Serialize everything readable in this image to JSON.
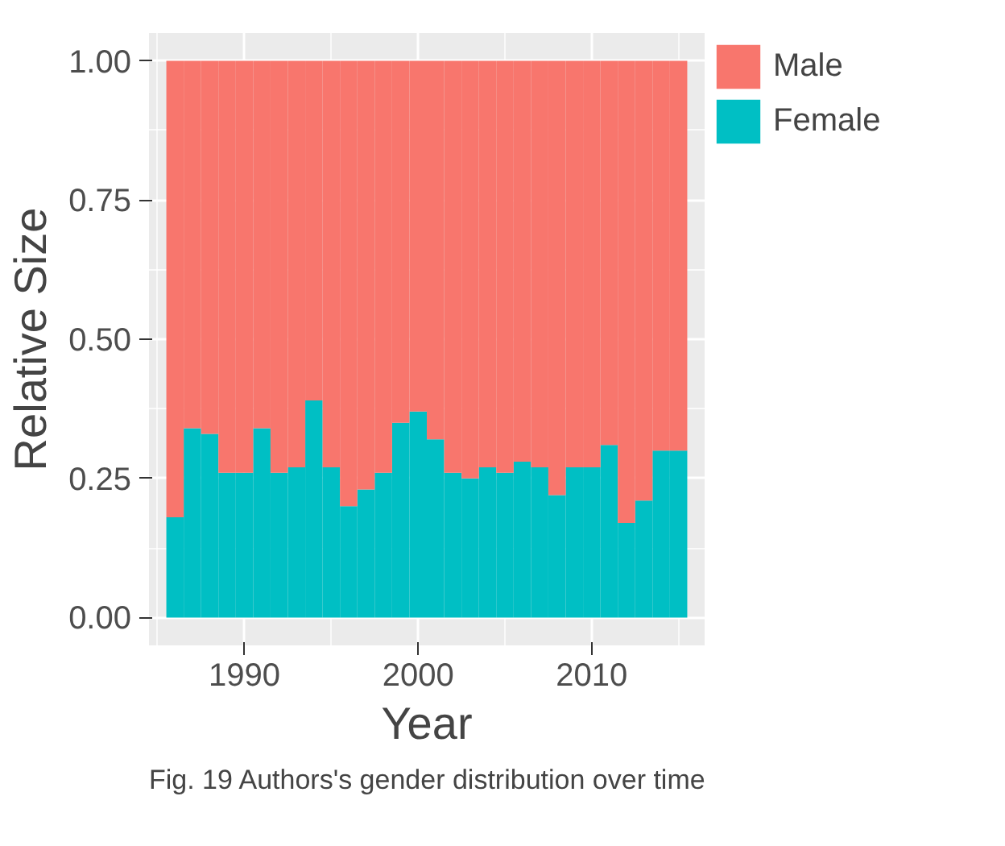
{
  "chart_data": {
    "type": "bar",
    "stacked": true,
    "xlabel": "Year",
    "ylabel": "Relative Size",
    "x": [
      1986,
      1987,
      1988,
      1989,
      1990,
      1991,
      1992,
      1993,
      1994,
      1995,
      1996,
      1997,
      1998,
      1999,
      2000,
      2001,
      2002,
      2003,
      2004,
      2005,
      2006,
      2007,
      2008,
      2009,
      2010,
      2011,
      2012,
      2013,
      2014,
      2015
    ],
    "series": [
      {
        "name": "Female",
        "color": "#00bfc4",
        "values": [
          0.18,
          0.34,
          0.33,
          0.26,
          0.26,
          0.34,
          0.26,
          0.27,
          0.39,
          0.27,
          0.2,
          0.23,
          0.26,
          0.35,
          0.37,
          0.32,
          0.26,
          0.25,
          0.27,
          0.26,
          0.28,
          0.27,
          0.22,
          0.27,
          0.27,
          0.31,
          0.17,
          0.21,
          0.3,
          0.3
        ]
      },
      {
        "name": "Male",
        "color": "#f8766d",
        "values": [
          0.82,
          0.66,
          0.67,
          0.74,
          0.74,
          0.66,
          0.74,
          0.73,
          0.61,
          0.73,
          0.8,
          0.77,
          0.74,
          0.65,
          0.63,
          0.68,
          0.74,
          0.75,
          0.73,
          0.74,
          0.72,
          0.73,
          0.78,
          0.73,
          0.73,
          0.69,
          0.83,
          0.79,
          0.7,
          0.7
        ]
      }
    ],
    "xlim": [
      1984.5,
      2016.5
    ],
    "xticks": [
      1990,
      2000,
      2010
    ],
    "ylim": [
      -0.05,
      1.05
    ],
    "yticks": [
      {
        "value": 0,
        "label": "0.00"
      },
      {
        "value": 0.25,
        "label": "0.25"
      },
      {
        "value": 0.5,
        "label": "0.50"
      },
      {
        "value": 0.75,
        "label": "0.75"
      },
      {
        "value": 1,
        "label": "1.00"
      }
    ],
    "grid": true,
    "legend": "top right",
    "annotations": [
      "Fig. 19 Authors's gender distribution over time"
    ]
  }
}
